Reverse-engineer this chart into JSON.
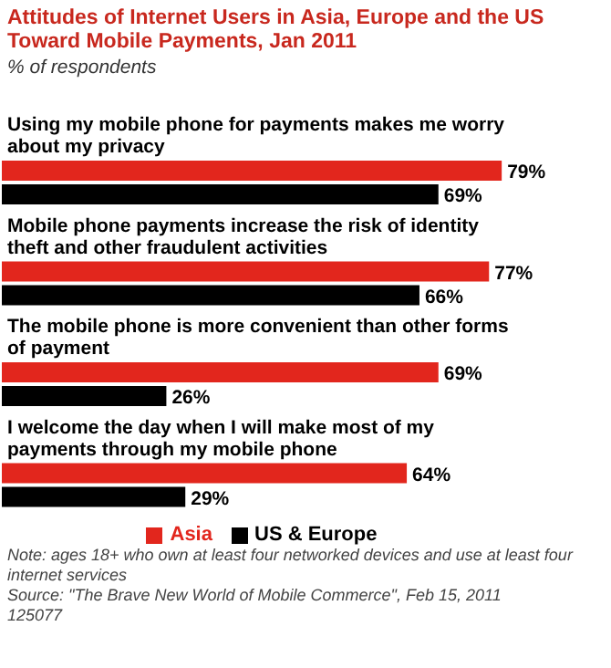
{
  "chart_data": {
    "type": "bar",
    "orientation": "horizontal",
    "title": "Attitudes of Internet Users in Asia, Europe and the US Toward Mobile Payments, Jan 2011",
    "subtitle": "% of respondents",
    "categories": [
      "Using my mobile phone for payments makes me worry about my privacy",
      "Mobile phone payments increase the risk of identity theft and other fraudulent activities",
      "The mobile phone is more convenient than other forms of payment",
      "I welcome the day when I will make most of my payments through my mobile phone"
    ],
    "series": [
      {
        "name": "Asia",
        "color": "#e2261d",
        "values": [
          79,
          77,
          69,
          64
        ],
        "value_labels": [
          "79%",
          "77%",
          "69%",
          "64%"
        ]
      },
      {
        "name": "US & Europe",
        "color": "#000000",
        "values": [
          69,
          66,
          26,
          29
        ],
        "value_labels": [
          "69%",
          "66%",
          "26%",
          "29%"
        ]
      }
    ],
    "legend": "bottom",
    "annotations": [
      "Note: ages 18+ who own at least four networked devices and use at least four internet services",
      "Source: \"The Brave New World of Mobile Commerce\", Feb 15, 2011",
      "125077"
    ]
  }
}
